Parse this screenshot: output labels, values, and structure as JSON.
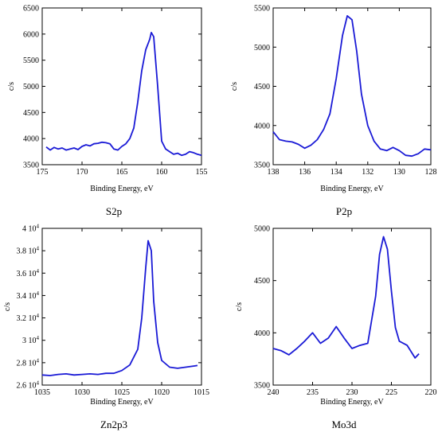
{
  "chart_data": [
    {
      "type": "line",
      "title": "S2p",
      "xlabel": "Binding Energy, eV",
      "ylabel": "c/s",
      "xlim": [
        175,
        155
      ],
      "ylim": [
        3500,
        6500
      ],
      "x_reversed": true,
      "x_ticks": [
        "175",
        "170",
        "165",
        "160",
        "155"
      ],
      "y_ticks": [
        "3500",
        "4000",
        "4500",
        "5000",
        "5500",
        "6000",
        "6500"
      ],
      "line_color": "#1a1ad6",
      "grid": false,
      "series": [
        {
          "x": [
            174.5,
            174.0,
            173.5,
            173.0,
            172.5,
            172.0,
            171.5,
            171.0,
            170.5,
            170.0,
            169.5,
            169.0,
            168.5,
            168.0,
            167.5,
            167.0,
            166.5,
            166.0,
            165.5,
            165.0,
            164.5,
            164.0,
            163.5,
            163.0,
            162.5,
            162.0,
            161.5,
            161.3,
            161.0,
            160.5,
            160.0,
            159.5,
            159.0,
            158.5,
            158.0,
            157.5,
            157.0,
            156.5,
            156.0,
            155.5,
            155.0
          ],
          "y": [
            3840,
            3780,
            3830,
            3800,
            3820,
            3780,
            3800,
            3820,
            3790,
            3850,
            3880,
            3860,
            3900,
            3910,
            3930,
            3920,
            3900,
            3800,
            3780,
            3850,
            3900,
            4000,
            4200,
            4700,
            5300,
            5700,
            5900,
            6030,
            5950,
            5000,
            3950,
            3800,
            3750,
            3700,
            3720,
            3680,
            3700,
            3750,
            3730,
            3700,
            3680
          ]
        }
      ]
    },
    {
      "type": "line",
      "title": "P2p",
      "xlabel": "Binding Energy, eV",
      "ylabel": "c/s",
      "xlim": [
        138,
        128
      ],
      "ylim": [
        3500,
        5500
      ],
      "x_reversed": true,
      "x_ticks": [
        "138",
        "136",
        "134",
        "132",
        "130",
        "128"
      ],
      "y_ticks": [
        "3500",
        "4000",
        "4500",
        "5000",
        "5500"
      ],
      "line_color": "#1a1ad6",
      "grid": false,
      "series": [
        {
          "x": [
            138.0,
            137.6,
            137.2,
            136.8,
            136.4,
            136.0,
            135.6,
            135.2,
            134.8,
            134.4,
            134.0,
            133.6,
            133.3,
            133.0,
            132.7,
            132.4,
            132.0,
            131.6,
            131.2,
            130.8,
            130.4,
            130.0,
            129.6,
            129.2,
            128.8,
            128.4,
            128.0
          ],
          "y": [
            3920,
            3820,
            3800,
            3790,
            3760,
            3710,
            3750,
            3820,
            3950,
            4150,
            4600,
            5150,
            5400,
            5350,
            4950,
            4400,
            4000,
            3800,
            3700,
            3680,
            3720,
            3680,
            3620,
            3610,
            3640,
            3700,
            3690
          ]
        }
      ]
    },
    {
      "type": "line",
      "title": "Zn2p3",
      "xlabel": "Binding Energy, eV",
      "ylabel": "c/s",
      "xlim": [
        1035,
        1015
      ],
      "ylim": [
        26000,
        40000
      ],
      "x_reversed": true,
      "x_ticks": [
        "1035",
        "1030",
        "1025",
        "1020",
        "1015"
      ],
      "y_tick_values": [
        26000,
        28000,
        30000,
        32000,
        34000,
        36000,
        38000,
        40000
      ],
      "y_tick_mantissas": [
        "2.6",
        "2.8",
        "3",
        "3.2",
        "3.4",
        "3.6",
        "3.8",
        "4"
      ],
      "y_tick_exponent": "4",
      "line_color": "#1a1ad6",
      "grid": false,
      "series": [
        {
          "x": [
            1035.0,
            1034.0,
            1033.0,
            1032.0,
            1031.0,
            1030.0,
            1029.0,
            1028.0,
            1027.0,
            1026.0,
            1025.0,
            1024.0,
            1023.0,
            1022.5,
            1022.0,
            1021.7,
            1021.3,
            1021.0,
            1020.5,
            1020.0,
            1019.0,
            1018.0,
            1017.0,
            1016.0,
            1015.5
          ],
          "y": [
            26900,
            26850,
            26950,
            27000,
            26900,
            26950,
            27000,
            26950,
            27050,
            27050,
            27300,
            27800,
            29200,
            32000,
            36500,
            38900,
            38000,
            33500,
            29800,
            28200,
            27600,
            27500,
            27600,
            27700,
            27750
          ]
        }
      ]
    },
    {
      "type": "line",
      "title": "Mo3d",
      "xlabel": "Binding Energy, eV",
      "ylabel": "c/s",
      "xlim": [
        240,
        220
      ],
      "ylim": [
        3500,
        5000
      ],
      "x_reversed": true,
      "x_ticks": [
        "240",
        "235",
        "230",
        "225",
        "220"
      ],
      "y_ticks": [
        "3500",
        "4000",
        "4500",
        "5000"
      ],
      "line_color": "#1a1ad6",
      "grid": false,
      "series": [
        {
          "x": [
            240.0,
            239.0,
            238.0,
            237.0,
            236.0,
            235.0,
            234.0,
            233.0,
            232.0,
            231.0,
            230.0,
            229.0,
            228.0,
            227.0,
            226.5,
            226.0,
            225.5,
            225.0,
            224.5,
            224.0,
            223.0,
            222.0,
            221.5
          ],
          "y": [
            3850,
            3830,
            3790,
            3850,
            3920,
            4000,
            3900,
            3950,
            4060,
            3950,
            3850,
            3880,
            3900,
            4350,
            4750,
            4920,
            4800,
            4400,
            4050,
            3920,
            3880,
            3760,
            3800
          ]
        }
      ]
    }
  ]
}
